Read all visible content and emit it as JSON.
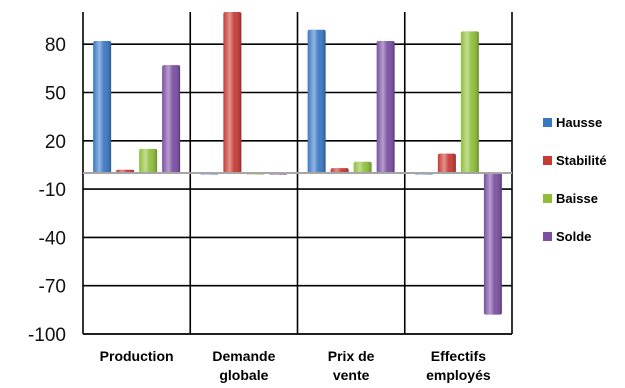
{
  "chart_data": {
    "type": "bar",
    "categories": [
      [
        "Production"
      ],
      [
        "Demande",
        "globale"
      ],
      [
        "Prix de",
        "vente"
      ],
      [
        "Effectifs",
        "employés"
      ]
    ],
    "series": [
      {
        "name": "Hausse",
        "values": [
          82,
          0,
          89,
          0
        ],
        "color": "#3b78c4"
      },
      {
        "name": "Stabilité",
        "values": [
          2,
          100,
          3,
          12
        ],
        "color": "#c83a34"
      },
      {
        "name": "Baisse",
        "values": [
          15,
          0,
          7,
          88
        ],
        "color": "#8fbf3a"
      },
      {
        "name": "Solde",
        "values": [
          67,
          -1,
          82,
          -88
        ],
        "color": "#7b4fa3"
      }
    ],
    "yticks": [
      80,
      50,
      20,
      -10,
      -40,
      -70,
      -100
    ],
    "ylim": [
      -100,
      100
    ],
    "zero_line_color": "#a6a6a6",
    "grid": true,
    "legend_position": "right"
  }
}
